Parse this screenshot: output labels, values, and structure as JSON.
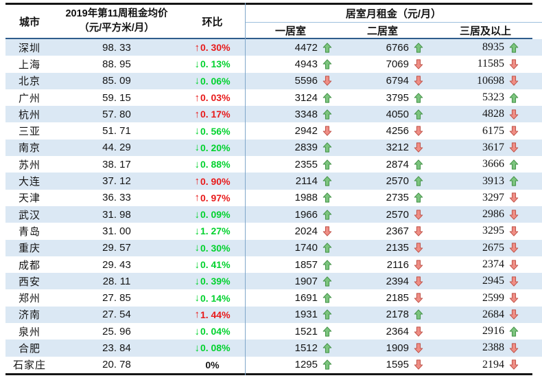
{
  "table": {
    "header": {
      "city": "城市",
      "price_line1": "2019年第11周租金均价",
      "price_line2": "（元/平方米/月）",
      "mom": "环比",
      "room_group": "居室月租金（元/月）",
      "room1": "一居室",
      "room2": "二居室",
      "room3": "三居及以上"
    },
    "colors": {
      "mom_up_red": "#e81a1a",
      "mom_down_green": "#00d22d",
      "mom_flat_black": "#141414",
      "arrow_up_fill": "#7cc47e",
      "arrow_up_stroke": "#3f8f43",
      "arrow_down_fill": "#ef8e85",
      "arrow_down_stroke": "#bd4f45",
      "row_stripe": "#dbe8f4",
      "section_divider": "#7fa6c9",
      "header_underline": "#2e5c8c",
      "group_underline": "#9dc0dd",
      "outer_border": "#151515"
    },
    "rows": [
      {
        "city": "深圳",
        "price": "98. 33",
        "mom": "0. 30%",
        "mom_dir": "up",
        "r1": "4472",
        "d1": "up",
        "r2": "6766",
        "d2": "up",
        "r3": "8935",
        "d3": "up"
      },
      {
        "city": "上海",
        "price": "88. 95",
        "mom": "0. 13%",
        "mom_dir": "down",
        "r1": "4943",
        "d1": "up",
        "r2": "7069",
        "d2": "down",
        "r3": "11585",
        "d3": "down"
      },
      {
        "city": "北京",
        "price": "85. 09",
        "mom": "0. 06%",
        "mom_dir": "down",
        "r1": "5596",
        "d1": "down",
        "r2": "6794",
        "d2": "down",
        "r3": "10698",
        "d3": "down"
      },
      {
        "city": "广州",
        "price": "59. 15",
        "mom": "0. 03%",
        "mom_dir": "up",
        "r1": "3124",
        "d1": "up",
        "r2": "3795",
        "d2": "up",
        "r3": "5323",
        "d3": "up"
      },
      {
        "city": "杭州",
        "price": "57. 80",
        "mom": "0. 17%",
        "mom_dir": "up",
        "r1": "3348",
        "d1": "up",
        "r2": "4050",
        "d2": "up",
        "r3": "4828",
        "d3": "down"
      },
      {
        "city": "三亚",
        "price": "51. 71",
        "mom": "0. 56%",
        "mom_dir": "down",
        "r1": "2942",
        "d1": "down",
        "r2": "4256",
        "d2": "down",
        "r3": "6175",
        "d3": "down"
      },
      {
        "city": "南京",
        "price": "44. 29",
        "mom": "0. 20%",
        "mom_dir": "down",
        "r1": "2839",
        "d1": "up",
        "r2": "3212",
        "d2": "down",
        "r3": "3617",
        "d3": "down"
      },
      {
        "city": "苏州",
        "price": "38. 17",
        "mom": "0. 88%",
        "mom_dir": "down",
        "r1": "2355",
        "d1": "up",
        "r2": "2874",
        "d2": "up",
        "r3": "3666",
        "d3": "up"
      },
      {
        "city": "大连",
        "price": "37. 12",
        "mom": "0. 90%",
        "mom_dir": "up",
        "r1": "2114",
        "d1": "up",
        "r2": "2570",
        "d2": "up",
        "r3": "3913",
        "d3": "up"
      },
      {
        "city": "天津",
        "price": "36. 33",
        "mom": "0. 97%",
        "mom_dir": "up",
        "r1": "1988",
        "d1": "up",
        "r2": "2735",
        "d2": "up",
        "r3": "3297",
        "d3": "down"
      },
      {
        "city": "武汉",
        "price": "31. 98",
        "mom": "0. 09%",
        "mom_dir": "down",
        "r1": "1966",
        "d1": "up",
        "r2": "2570",
        "d2": "down",
        "r3": "2986",
        "d3": "down"
      },
      {
        "city": "青岛",
        "price": "31. 00",
        "mom": "1. 27%",
        "mom_dir": "down",
        "r1": "2024",
        "d1": "down",
        "r2": "2367",
        "d2": "down",
        "r3": "3295",
        "d3": "down"
      },
      {
        "city": "重庆",
        "price": "29. 57",
        "mom": "0. 30%",
        "mom_dir": "down",
        "r1": "1740",
        "d1": "up",
        "r2": "2135",
        "d2": "down",
        "r3": "2675",
        "d3": "down"
      },
      {
        "city": "成都",
        "price": "29. 43",
        "mom": "0. 41%",
        "mom_dir": "down",
        "r1": "1857",
        "d1": "up",
        "r2": "2116",
        "d2": "down",
        "r3": "2374",
        "d3": "down"
      },
      {
        "city": "西安",
        "price": "28. 11",
        "mom": "0. 39%",
        "mom_dir": "down",
        "r1": "1907",
        "d1": "up",
        "r2": "2394",
        "d2": "down",
        "r3": "2945",
        "d3": "down"
      },
      {
        "city": "郑州",
        "price": "27. 85",
        "mom": "0. 14%",
        "mom_dir": "down",
        "r1": "1691",
        "d1": "up",
        "r2": "2185",
        "d2": "down",
        "r3": "2599",
        "d3": "down"
      },
      {
        "city": "济南",
        "price": "27. 54",
        "mom": "1. 44%",
        "mom_dir": "up",
        "r1": "1931",
        "d1": "up",
        "r2": "2178",
        "d2": "up",
        "r3": "2684",
        "d3": "down"
      },
      {
        "city": "泉州",
        "price": "25. 96",
        "mom": "0. 04%",
        "mom_dir": "down",
        "r1": "1521",
        "d1": "up",
        "r2": "2364",
        "d2": "down",
        "r3": "2916",
        "d3": "up"
      },
      {
        "city": "合肥",
        "price": "23. 84",
        "mom": "0. 08%",
        "mom_dir": "down",
        "r1": "1512",
        "d1": "up",
        "r2": "1909",
        "d2": "down",
        "r3": "2388",
        "d3": "down"
      },
      {
        "city": "石家庄",
        "price": "20. 78",
        "mom": "0%",
        "mom_dir": "flat",
        "r1": "1295",
        "d1": "up",
        "r2": "1595",
        "d2": "down",
        "r3": "2194",
        "d3": "down"
      }
    ]
  }
}
